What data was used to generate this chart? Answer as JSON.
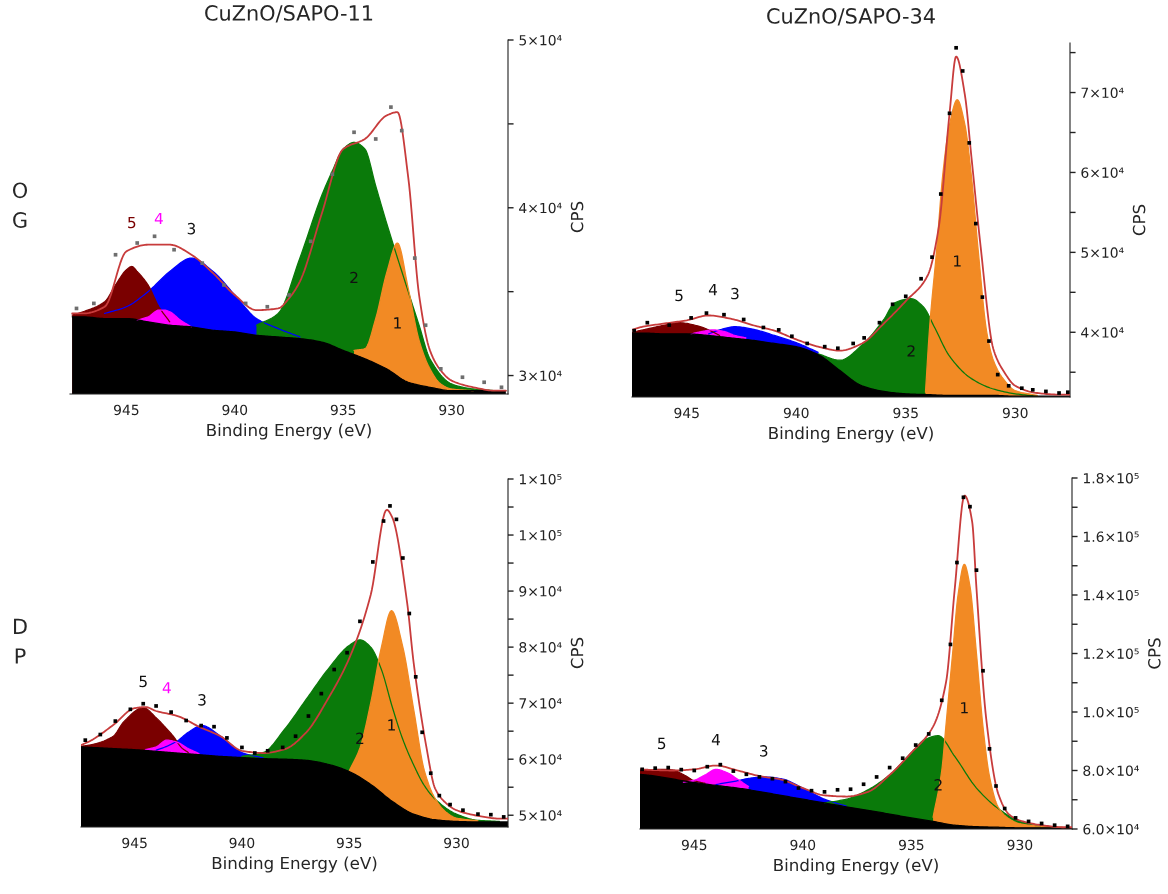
{
  "chart_data": [
    {
      "type": "area",
      "title": "CuZnO/SAPO-11",
      "xlabel": "Binding Energy (eV)",
      "ylabel": "CPS",
      "xlim": [
        947.6,
        927.4
      ],
      "ylim": [
        28900,
        50000
      ],
      "xticks": [
        945,
        940,
        935,
        930
      ],
      "yticks": [
        {
          "value": 30000,
          "label": "3×10⁴"
        },
        {
          "value": 35000,
          "label": null
        },
        {
          "value": 40000,
          "label": "4×10⁴"
        },
        {
          "value": 45000,
          "label": null
        },
        {
          "value": 50000,
          "label": "5×10⁴"
        }
      ],
      "series": [
        {
          "name": "3",
          "color": "#0000ff",
          "x": [
            946,
            945,
            944,
            943,
            942,
            941,
            940,
            939,
            938,
            937
          ],
          "values": [
            33700,
            34100,
            35000,
            36200,
            37000,
            36200,
            34800,
            33400,
            32800,
            32300
          ]
        },
        {
          "name": "5",
          "color": "#7a0000",
          "x": [
            947.5,
            947,
            946,
            945.5,
            945,
            944.75,
            944.5,
            944,
            943.5,
            943
          ],
          "values": [
            33600,
            33800,
            34400,
            35400,
            36300,
            36500,
            36200,
            35400,
            34100,
            33200
          ]
        },
        {
          "name": "4",
          "color": "#ff00ff",
          "x": [
            944.5,
            944,
            943.5,
            943.25,
            943,
            942.5,
            942
          ],
          "values": [
            33300,
            33500,
            33900,
            33900,
            33800,
            33300,
            32900
          ]
        },
        {
          "name": "2",
          "color": "#0a7a0a",
          "x": [
            939,
            938,
            937,
            936,
            935.5,
            935,
            934.5,
            934,
            933.5,
            933,
            932,
            931.5,
            931,
            930,
            929,
            928
          ],
          "values": [
            33000,
            33700,
            37000,
            40700,
            42200,
            43500,
            43900,
            43500,
            41300,
            39100,
            35000,
            33000,
            31000,
            29500,
            29200,
            29100
          ]
        },
        {
          "name": "1",
          "color": "#f28a24",
          "x": [
            934.5,
            934,
            933.5,
            933,
            932.5,
            932,
            931.5,
            931,
            930.5,
            930,
            929
          ],
          "values": [
            31500,
            31600,
            33400,
            36100,
            37900,
            35200,
            32100,
            30400,
            29500,
            29200,
            29100
          ]
        },
        {
          "color": "#000000",
          "x": [
            947.5,
            947,
            946,
            945,
            944,
            943,
            942,
            941,
            940,
            939,
            938,
            937,
            936,
            935,
            934,
            933,
            932,
            931,
            930,
            929,
            928,
            927.5
          ],
          "values": [
            33500,
            33500,
            33400,
            33400,
            33200,
            33000,
            32900,
            32700,
            32600,
            32400,
            32300,
            32200,
            32000,
            31500,
            31000,
            30400,
            29600,
            29300,
            29100,
            29100,
            29100,
            29100
          ]
        },
        {
          "type": "line",
          "color": "#c83c3c",
          "x": [
            947.5,
            947,
            946,
            945,
            944,
            943,
            942,
            941,
            940,
            939,
            938,
            937.5,
            937,
            936,
            935,
            934,
            933,
            932.5,
            932,
            931.5,
            931,
            930.5,
            930,
            929,
            928,
            927.5
          ],
          "values": [
            33700,
            33700,
            34100,
            37400,
            37800,
            37800,
            37200,
            36100,
            34800,
            33900,
            34000,
            34600,
            35600,
            39600,
            43500,
            44100,
            45500,
            45700,
            41800,
            34800,
            31500,
            30300,
            29700,
            29300,
            29100,
            29100
          ]
        },
        {
          "type": "scatter",
          "color": "#6e6e6e",
          "marker": "square",
          "x": [
            947.3,
            946.5,
            945.5,
            944.5,
            943.7,
            942.8,
            941.5,
            940.5,
            939.5,
            938.5,
            937.5,
            936.5,
            935.5,
            934.5,
            933.5,
            932.8,
            932.3,
            931.7,
            931.2,
            930.5,
            929.5,
            928.5,
            927.7
          ],
          "values": [
            34000,
            34300,
            37200,
            37900,
            38300,
            37500,
            36700,
            35400,
            34300,
            34100,
            34800,
            38000,
            42000,
            44500,
            44100,
            46000,
            44600,
            37000,
            33000,
            30400,
            29900,
            29600,
            29300
          ]
        }
      ],
      "annotations": [
        "O\nG"
      ]
    },
    {
      "type": "area",
      "title": "CuZnO/SAPO-34",
      "xlabel": "Binding Energy (eV)",
      "ylabel": "CPS",
      "xlim": [
        947.5,
        927.5
      ],
      "ylim": [
        31900,
        76200
      ],
      "xticks": [
        945,
        940,
        935,
        930
      ],
      "yticks": [
        {
          "value": 35000,
          "label": null
        },
        {
          "value": 40000,
          "label": "4×10⁴"
        },
        {
          "value": 45000,
          "label": null
        },
        {
          "value": 50000,
          "label": "5×10⁴"
        },
        {
          "value": 55000,
          "label": null
        },
        {
          "value": 60000,
          "label": "6×10⁴"
        },
        {
          "value": 65000,
          "label": null
        },
        {
          "value": 70000,
          "label": "7×10⁴"
        },
        {
          "value": 75000,
          "label": null
        }
      ],
      "series": [
        {
          "name": "3",
          "color": "#0000ff",
          "x": [
            944,
            943.5,
            942.8,
            942,
            941,
            940,
            939
          ],
          "values": [
            39800,
            40300,
            40700,
            40400,
            39600,
            38700,
            37500
          ]
        },
        {
          "name": "5",
          "color": "#7a0000",
          "x": [
            947.5,
            947,
            946,
            945.35,
            944.5,
            944,
            943.5
          ],
          "values": [
            40000,
            40300,
            40900,
            41200,
            40800,
            40300,
            39600
          ]
        },
        {
          "name": "4",
          "color": "#ff00ff",
          "x": [
            944.8,
            944.3,
            943.8,
            943.3,
            942.8,
            942.3
          ],
          "values": [
            39800,
            40100,
            40300,
            40100,
            39600,
            39300
          ]
        },
        {
          "name": "2",
          "color": "#0a7a0a",
          "x": [
            939,
            938,
            937,
            936,
            935.5,
            934.75,
            934.2,
            933.7,
            933,
            932,
            931,
            930,
            929
          ],
          "values": [
            37300,
            36500,
            38400,
            41600,
            43700,
            44200,
            43200,
            40700,
            37000,
            34200,
            32900,
            32300,
            32000
          ]
        },
        {
          "name": "1",
          "color": "#f28a24",
          "x": [
            934.1,
            933.9,
            933.6,
            933.3,
            933,
            932.65,
            932.3,
            932,
            931.7,
            931.3,
            931,
            930.5,
            930,
            929
          ],
          "values": [
            32500,
            41000,
            50000,
            60000,
            66000,
            69100,
            66000,
            59500,
            50500,
            40000,
            36500,
            34000,
            32700,
            32100
          ]
        },
        {
          "color": "#000000",
          "x": [
            947.5,
            947,
            946,
            945,
            944,
            943,
            942,
            941,
            940,
            939,
            938,
            937,
            936,
            935,
            934,
            933,
            932,
            931,
            930,
            929,
            928,
            927.5
          ],
          "values": [
            39900,
            39900,
            39800,
            39800,
            39600,
            39300,
            39000,
            38600,
            38200,
            37200,
            35200,
            33300,
            32600,
            32300,
            32200,
            32100,
            32100,
            32100,
            32000,
            32000,
            32000,
            32000
          ]
        },
        {
          "type": "line",
          "color": "#c83c3c",
          "x": [
            947.5,
            947,
            946,
            945,
            944,
            943,
            942,
            941,
            940,
            939,
            938,
            937,
            936,
            935,
            934,
            933.5,
            933,
            932.7,
            932.3,
            932,
            931.6,
            931,
            930.5,
            930,
            929,
            928,
            927.5
          ],
          "values": [
            40300,
            40700,
            41100,
            41500,
            42100,
            41700,
            40900,
            40200,
            39100,
            38200,
            37700,
            38600,
            41100,
            43900,
            47100,
            53000,
            67400,
            74500,
            69700,
            61900,
            51200,
            37900,
            35000,
            33300,
            32400,
            32200,
            32200
          ]
        },
        {
          "type": "scatter",
          "color": "#000000",
          "marker": "square",
          "x": [
            947.4,
            946.8,
            945.8,
            944.8,
            944.1,
            943.3,
            942.4,
            941.5,
            940.8,
            940.2,
            939.5,
            938.7,
            938.1,
            937.4,
            936.9,
            936.2,
            935.6,
            935,
            934.3,
            933.8,
            933.4,
            933,
            932.7,
            932.4,
            932.1,
            931.8,
            931.5,
            931.2,
            930.8,
            930.3,
            929.7,
            929.2,
            928.6,
            928,
            927.6
          ],
          "values": [
            40200,
            41200,
            40900,
            41800,
            42400,
            42200,
            41600,
            40600,
            40300,
            39500,
            38600,
            38200,
            38000,
            38600,
            39300,
            41200,
            43500,
            44500,
            46700,
            49400,
            57300,
            67400,
            75600,
            72700,
            63700,
            53600,
            44400,
            38900,
            34700,
            33300,
            33000,
            32800,
            32600,
            32400,
            32500
          ]
        }
      ]
    },
    {
      "type": "area",
      "xlabel": "Binding Energy (eV)",
      "ylabel": "CPS",
      "xlim": [
        947.5,
        927.6
      ],
      "ylim": [
        47900,
        110000
      ],
      "xticks": [
        945,
        940,
        935,
        930
      ],
      "yticks": [
        {
          "value": 50000,
          "label": "5×10⁴"
        },
        {
          "value": 55000,
          "label": null
        },
        {
          "value": 60000,
          "label": "6×10⁴"
        },
        {
          "value": 65000,
          "label": null
        },
        {
          "value": 70000,
          "label": "7×10⁴"
        },
        {
          "value": 75000,
          "label": null
        },
        {
          "value": 80000,
          "label": "8×10⁴"
        },
        {
          "value": 85000,
          "label": null
        },
        {
          "value": 90000,
          "label": "9×10⁴"
        },
        {
          "value": 95000,
          "label": null
        },
        {
          "value": 100000,
          "label": "1×10⁵"
        },
        {
          "value": 105000,
          "label": null
        },
        {
          "value": 110000,
          "label": "1×10⁵"
        }
      ],
      "series": [
        {
          "name": "3",
          "color": "#0000ff",
          "x": [
            944,
            943.5,
            943,
            942.5,
            941.86,
            941,
            940.5,
            940,
            939
          ],
          "values": [
            61600,
            62300,
            63300,
            64800,
            66000,
            64100,
            62600,
            61200,
            60200
          ]
        },
        {
          "name": "5",
          "color": "#7a0000",
          "x": [
            947.5,
            947,
            946,
            945.5,
            944.6,
            944,
            943.5,
            943.2,
            942.8,
            942.5
          ],
          "values": [
            62300,
            62600,
            64100,
            66700,
            69200,
            67400,
            65400,
            64100,
            62000,
            61200
          ]
        },
        {
          "name": "4",
          "color": "#ff00ff",
          "x": [
            944.5,
            944,
            943.5,
            943,
            942.5,
            942
          ],
          "values": [
            61700,
            62200,
            63400,
            63000,
            61900,
            61000
          ]
        },
        {
          "name": "2",
          "color": "#0a7a0a",
          "x": [
            940,
            939,
            938,
            937,
            936,
            935,
            934.5,
            934,
            933.5,
            933,
            932.5,
            932,
            931.5,
            931,
            930,
            929,
            928
          ],
          "values": [
            60500,
            61200,
            65400,
            70700,
            76000,
            80300,
            81300,
            80000,
            76000,
            69400,
            63500,
            59000,
            55300,
            52900,
            50200,
            49100,
            48900
          ]
        },
        {
          "name": "1",
          "color": "#f28a24",
          "x": [
            935,
            934.5,
            934,
            933.5,
            933.03,
            932.5,
            932,
            931.5,
            931,
            930.5,
            930,
            929
          ],
          "values": [
            57900,
            62000,
            70000,
            80000,
            86500,
            80000,
            69000,
            58000,
            53000,
            50600,
            49500,
            49000
          ]
        },
        {
          "color": "#000000",
          "x": [
            947.5,
            947,
            946,
            945,
            944,
            943,
            942,
            941,
            940,
            939,
            938,
            937,
            936,
            935,
            934,
            933,
            932,
            931,
            930,
            929,
            928,
            927.6
          ],
          "values": [
            62200,
            62100,
            61900,
            61700,
            61400,
            61100,
            60800,
            60500,
            60300,
            60100,
            60000,
            59800,
            59100,
            57800,
            55500,
            52500,
            50200,
            49200,
            48900,
            48800,
            48800,
            48800
          ]
        },
        {
          "type": "line",
          "color": "#c83c3c",
          "x": [
            947.5,
            947,
            946,
            945,
            944.5,
            944,
            943,
            942,
            941,
            940,
            939,
            938,
            937,
            936,
            935,
            934,
            933.25,
            933,
            932.3,
            932,
            931.4,
            931,
            930.5,
            930,
            929,
            928,
            927.6
          ],
          "values": [
            62500,
            63400,
            66100,
            69100,
            69300,
            68600,
            67700,
            65800,
            64100,
            61500,
            61100,
            61800,
            64800,
            70700,
            78000,
            89300,
            104500,
            103200,
            87900,
            77300,
            62100,
            54800,
            52200,
            50900,
            49900,
            49400,
            49400
          ]
        },
        {
          "type": "scatter",
          "color": "#000000",
          "marker": "square",
          "x": [
            947.3,
            946.6,
            945.9,
            945.2,
            944.6,
            944,
            943.3,
            942.6,
            941.9,
            941.3,
            940.7,
            940,
            939.4,
            938.8,
            938.1,
            937.5,
            936.9,
            936.3,
            935.7,
            935.1,
            934.5,
            933.9,
            933.4,
            933.1,
            932.8,
            932.5,
            932.2,
            931.9,
            931.6,
            931.2,
            930.8,
            930.3,
            929.7,
            929,
            928.4,
            927.8
          ],
          "values": [
            63400,
            64400,
            66800,
            68900,
            69900,
            69500,
            68400,
            66900,
            66000,
            65800,
            63800,
            62100,
            61100,
            61500,
            62100,
            64100,
            67700,
            71700,
            76000,
            79000,
            84600,
            95200,
            102500,
            105200,
            102800,
            95900,
            86000,
            74700,
            64800,
            57500,
            53500,
            51900,
            50900,
            50200,
            50100,
            49700
          ]
        }
      ],
      "annotations": [
        "D\nP"
      ]
    },
    {
      "type": "area",
      "xlabel": "Binding Energy (eV)",
      "ylabel": "CPS",
      "xlim": [
        947.5,
        927.6
      ],
      "ylim": [
        60000,
        180000
      ],
      "xticks": [
        945,
        940,
        935,
        930
      ],
      "yticks": [
        {
          "value": 60000,
          "label": "6.0×10⁴"
        },
        {
          "value": 70000,
          "label": null
        },
        {
          "value": 80000,
          "label": "8.0×10⁴"
        },
        {
          "value": 90000,
          "label": null
        },
        {
          "value": 100000,
          "label": "1.0×10⁵"
        },
        {
          "value": 110000,
          "label": null
        },
        {
          "value": 120000,
          "label": "1.2×10⁵"
        },
        {
          "value": 130000,
          "label": null
        },
        {
          "value": 140000,
          "label": "1.4×10⁵"
        },
        {
          "value": 150000,
          "label": null
        },
        {
          "value": 160000,
          "label": "1.6×10⁵"
        },
        {
          "value": 170000,
          "label": null
        },
        {
          "value": 180000,
          "label": "1.8×10⁵"
        }
      ],
      "series": [
        {
          "name": "3",
          "color": "#0000ff",
          "x": [
            944,
            943,
            942.5,
            941.8,
            941,
            940,
            939,
            938
          ],
          "values": [
            75200,
            76500,
            77300,
            77800,
            77200,
            74000,
            70200,
            67800
          ]
        },
        {
          "name": "5",
          "color": "#7a0000",
          "x": [
            947.5,
            947,
            946.5,
            946,
            945.5,
            945,
            944.5
          ],
          "values": [
            80000,
            80300,
            80400,
            80200,
            78600,
            76500,
            75600
          ]
        },
        {
          "name": "4",
          "color": "#ff00ff",
          "x": [
            945.5,
            945,
            944.5,
            944,
            943.5,
            943,
            942.5
          ],
          "values": [
            76000,
            76700,
            78500,
            80400,
            79300,
            77000,
            74500
          ]
        },
        {
          "name": "2",
          "color": "#0a7a0a",
          "x": [
            939,
            938,
            937,
            936,
            935,
            934.4,
            933.76,
            933,
            932,
            931,
            930,
            929,
            928
          ],
          "values": [
            68900,
            70200,
            73400,
            78500,
            86100,
            90500,
            91900,
            84800,
            74000,
            67000,
            62600,
            60900,
            60500
          ]
        },
        {
          "name": "1",
          "color": "#f28a24",
          "x": [
            934,
            933.6,
            933.4,
            933.1,
            932.85,
            932.56,
            932.3,
            932,
            931.7,
            931.4,
            931,
            930.5,
            930,
            929,
            928
          ],
          "values": [
            64000,
            80000,
            96000,
            120000,
            140000,
            150500,
            143000,
            120000,
            95000,
            78000,
            67500,
            63500,
            61800,
            60900,
            60500
          ]
        },
        {
          "color": "#000000",
          "x": [
            947.5,
            947,
            946,
            945,
            944,
            943,
            942,
            941,
            940,
            939,
            938,
            937,
            936,
            935,
            934,
            933,
            932,
            931,
            930,
            929,
            928,
            927.6
          ],
          "values": [
            78700,
            78300,
            77100,
            75900,
            74900,
            74000,
            72800,
            71500,
            70200,
            68900,
            67600,
            66400,
            65100,
            63800,
            62600,
            61300,
            60800,
            60600,
            60400,
            60400,
            60400,
            60400
          ]
        },
        {
          "type": "line",
          "color": "#c83c3c",
          "x": [
            947.5,
            947,
            946,
            945,
            944,
            943,
            942,
            941,
            940,
            939,
            938,
            937,
            936,
            935,
            934,
            933.4,
            933,
            932.55,
            932.2,
            932,
            931.55,
            931,
            930.5,
            930,
            929,
            928,
            927.6
          ],
          "values": [
            80400,
            80200,
            80000,
            80400,
            81700,
            80000,
            78100,
            76900,
            74000,
            71500,
            71100,
            72700,
            78500,
            86100,
            95000,
            110300,
            142200,
            174000,
            165100,
            142200,
            97600,
            72100,
            65000,
            62900,
            61300,
            60600,
            60600
          ]
        },
        {
          "type": "scatter",
          "color": "#000000",
          "marker": "square",
          "x": [
            947.4,
            946.8,
            946.2,
            945.6,
            945,
            944.4,
            943.8,
            943.2,
            942.6,
            942,
            941.4,
            940.8,
            940.2,
            939.6,
            939,
            938.4,
            937.8,
            937.2,
            936.6,
            936,
            935.4,
            934.8,
            934.2,
            933.6,
            933.2,
            932.9,
            932.6,
            932.3,
            932,
            931.7,
            931.4,
            931.1,
            930.7,
            930.2,
            929.6,
            929,
            928.4,
            927.8
          ],
          "values": [
            80400,
            80800,
            81000,
            80300,
            80000,
            81300,
            82000,
            79800,
            78700,
            77800,
            77200,
            76200,
            74000,
            73100,
            72700,
            73400,
            73600,
            75300,
            77800,
            81000,
            84200,
            88700,
            92500,
            104000,
            123100,
            151100,
            173400,
            170200,
            148500,
            114100,
            87400,
            74700,
            67000,
            63800,
            62600,
            61900,
            61300,
            60900
          ]
        }
      ]
    }
  ]
}
